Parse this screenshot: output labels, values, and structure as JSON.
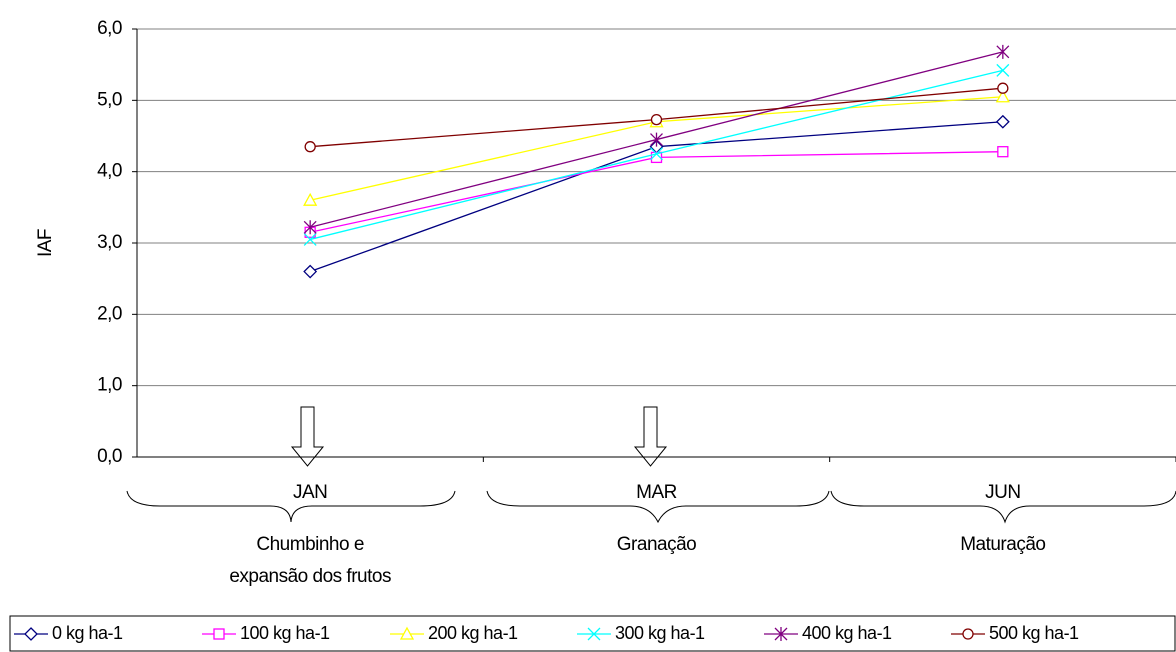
{
  "chart_data": {
    "type": "line",
    "y_label": "IAF",
    "categories": [
      "JAN",
      "MAR",
      "JUN"
    ],
    "phases": [
      [
        "Chumbinho e",
        "expansão dos frutos"
      ],
      [
        "Granação"
      ],
      [
        "Maturação"
      ]
    ],
    "series": [
      {
        "name": "0 kg ha-1",
        "color": "#000080",
        "marker": "diamond",
        "values": [
          2.6,
          4.35,
          4.7
        ]
      },
      {
        "name": "100 kg ha-1",
        "color": "#ff00ff",
        "marker": "square",
        "values": [
          3.15,
          4.2,
          4.28
        ]
      },
      {
        "name": "200 kg ha-1",
        "color": "#ffff00",
        "marker": "triangle",
        "values": [
          3.6,
          4.7,
          5.05
        ]
      },
      {
        "name": "300 kg ha-1",
        "color": "#00ffff",
        "marker": "x",
        "values": [
          3.05,
          4.25,
          5.42
        ]
      },
      {
        "name": "400 kg ha-1",
        "color": "#800080",
        "marker": "star",
        "values": [
          3.22,
          4.45,
          5.68
        ]
      },
      {
        "name": "500 kg ha-1",
        "color": "#800000",
        "marker": "circle",
        "values": [
          4.35,
          4.73,
          5.17
        ]
      }
    ],
    "ylim": [
      0,
      6
    ],
    "yticks": [
      {
        "value": 0,
        "label": "0,0"
      },
      {
        "value": 1,
        "label": "1,0"
      },
      {
        "value": 2,
        "label": "2,0"
      },
      {
        "value": 3,
        "label": "3,0"
      },
      {
        "value": 4,
        "label": "4,0"
      },
      {
        "value": 5,
        "label": "5,0"
      },
      {
        "value": 6,
        "label": "6,0"
      }
    ],
    "grid": true
  }
}
